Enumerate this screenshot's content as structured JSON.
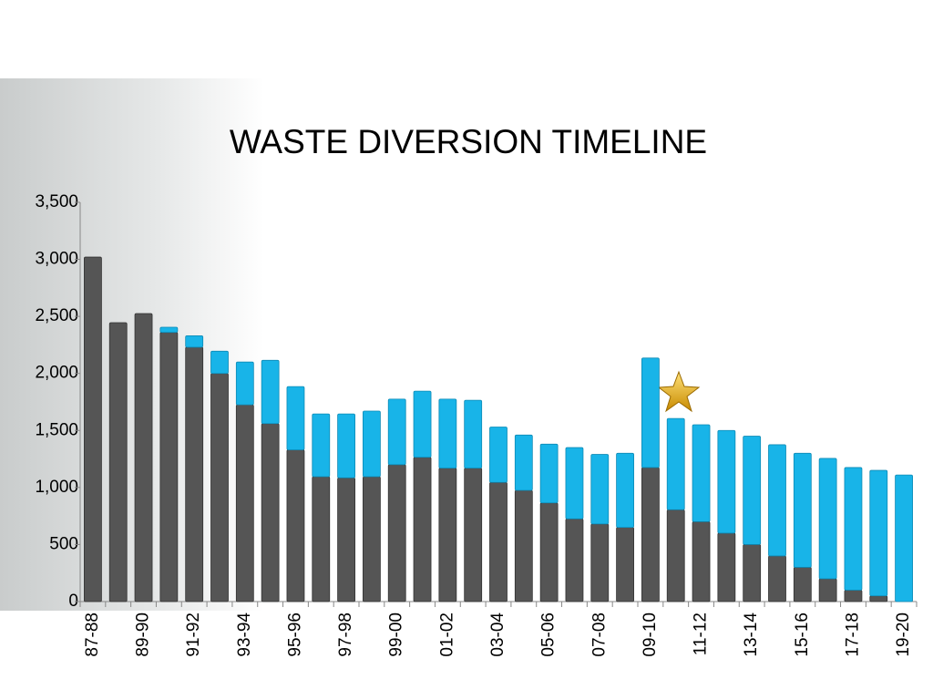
{
  "chart_data": {
    "type": "stacked-bar",
    "title": "WASTE DIVERSION TIMELINE",
    "categories": [
      "87-88",
      null,
      "89-90",
      null,
      "91-92",
      null,
      "93-94",
      null,
      "95-96",
      null,
      "97-98",
      null,
      "99-00",
      null,
      "01-02",
      null,
      "03-04",
      null,
      "05-06",
      null,
      "07-08",
      null,
      "09-10",
      null,
      "11-12",
      null,
      "13-14",
      null,
      "15-16",
      null,
      "17-18",
      null,
      "19-20"
    ],
    "series": [
      {
        "color": "#555555",
        "values": [
          3020,
          2445,
          2525,
          2360,
          2230,
          2000,
          1725,
          1560,
          1330,
          1095,
          1085,
          1095,
          1200,
          1265,
          1170,
          1170,
          1045,
          975,
          865,
          725,
          680,
          650,
          1175,
          805,
          700,
          600,
          500,
          400,
          300,
          200,
          100,
          50,
          0
        ]
      },
      {
        "color": "#18b4e8",
        "values": [
          0,
          0,
          0,
          45,
          100,
          195,
          375,
          555,
          555,
          550,
          560,
          575,
          575,
          580,
          605,
          595,
          485,
          485,
          515,
          625,
          610,
          650,
          960,
          800,
          850,
          900,
          950,
          975,
          1000,
          1055,
          1075,
          1100,
          1110
        ]
      }
    ],
    "ylim": [
      0,
      3500
    ],
    "yticks": [
      0,
      500,
      {
        "value": 1000,
        "label": "1,000"
      },
      {
        "value": 1500,
        "label": "1,500"
      },
      {
        "value": 2000,
        "label": "2,000"
      },
      {
        "value": 2500,
        "label": "2,500"
      },
      {
        "value": 3000,
        "label": "3,000"
      },
      {
        "value": 3500,
        "label": "3,500"
      }
    ]
  }
}
